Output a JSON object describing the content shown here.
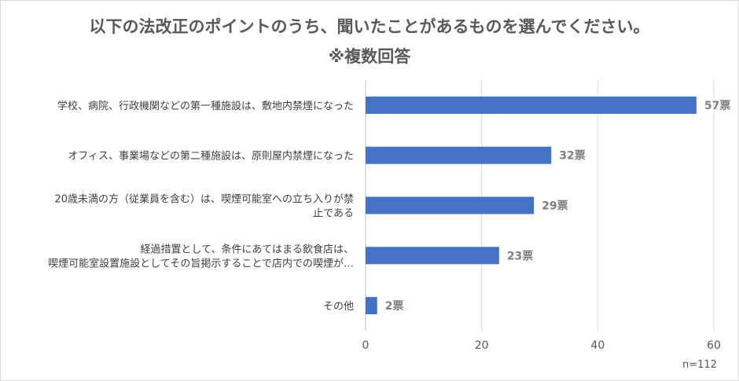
{
  "chart_data": {
    "type": "bar",
    "orientation": "horizontal",
    "title": "以下の法改正のポイントのうち、聞いたことがあるものを選んでください。",
    "subtitle": "※複数回答",
    "categories": [
      [
        "学校、病院、行政機関などの第一種施設は、敷地内禁煙になった"
      ],
      [
        "オフィス、事業場などの第二種施設は、原則屋内禁煙になった"
      ],
      [
        "20歳未満の方（従業員を含む）は、喫煙可能室への立ち入りが禁",
        "止である"
      ],
      [
        "経過措置として、条件にあてはまる飲食店は、",
        "喫煙可能室設置施設としてその旨掲示することで店内での喫煙が…"
      ],
      [
        "その他"
      ]
    ],
    "values": [
      57,
      32,
      29,
      23,
      2
    ],
    "data_labels": [
      "57票",
      "32票",
      "29票",
      "23票",
      "2票"
    ],
    "xlim": [
      0,
      60
    ],
    "xticks": [
      0,
      20,
      40,
      60
    ],
    "grid": true,
    "bar_color": "#4472c4",
    "note": "n=112"
  }
}
